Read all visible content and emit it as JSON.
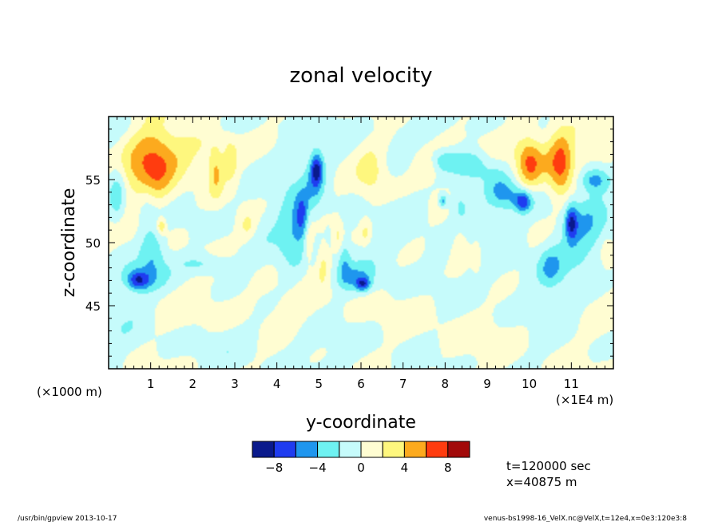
{
  "chart_data": {
    "type": "heatmap",
    "title": "zonal velocity",
    "xlabel": "y-coordinate",
    "ylabel": "z-coordinate",
    "x_unit_note": "(×1E4 m)",
    "y_unit_note": "(×1000 m)",
    "xlim": [
      0,
      12
    ],
    "ylim": [
      40,
      60
    ],
    "x_ticks": [
      "1",
      "2",
      "3",
      "4",
      "5",
      "6",
      "7",
      "8",
      "9",
      "10",
      "11"
    ],
    "y_ticks": [
      "45",
      "50",
      "55"
    ],
    "grid": false,
    "colorbar": {
      "levels": [
        -10,
        -8,
        -6,
        -4,
        -2,
        0,
        2,
        4,
        6,
        8,
        10
      ],
      "colors": [
        "#0a1a8c",
        "#1f3cf0",
        "#1f96ee",
        "#6ef2f2",
        "#c6fbfb",
        "#fffdd2",
        "#fef77e",
        "#fcaa1e",
        "#ff3c0f",
        "#a20a0a"
      ],
      "tick_labels": [
        "-8",
        "-4",
        "0",
        "4",
        "8"
      ],
      "tick_values": [
        -8,
        -4,
        0,
        4,
        8
      ]
    },
    "features": [
      {
        "y": 1.03,
        "z": 56.3,
        "value": 5.0,
        "ry": 0.55,
        "rz": 3.2
      },
      {
        "y": 0.75,
        "z": 55.9,
        "value": 1.5,
        "ry": 0.75,
        "rz": 2.6
      },
      {
        "y": 2.1,
        "z": 57.0,
        "value": 2.6,
        "ry": 0.9,
        "rz": 2.2
      },
      {
        "y": 2.55,
        "z": 55.5,
        "value": 3.8,
        "ry": 0.18,
        "rz": 2.0
      },
      {
        "y": 2.9,
        "z": 56.5,
        "value": 3.2,
        "ry": 0.16,
        "rz": 1.6
      },
      {
        "y": 1.25,
        "z": 51.3,
        "value": 4.2,
        "ry": 0.1,
        "rz": 0.6
      },
      {
        "y": 3.3,
        "z": 51.3,
        "value": 2.6,
        "ry": 0.22,
        "rz": 1.2
      },
      {
        "y": 6.25,
        "z": 55.5,
        "value": 2.6,
        "ry": 0.35,
        "rz": 2.3
      },
      {
        "y": 7.55,
        "z": 56.1,
        "value": 2.6,
        "ry": 0.32,
        "rz": 1.2
      },
      {
        "y": 10.0,
        "z": 56.3,
        "value": 5.0,
        "ry": 0.3,
        "rz": 2.1
      },
      {
        "y": 10.75,
        "z": 56.0,
        "value": 5.0,
        "ry": 0.28,
        "rz": 2.8
      },
      {
        "y": 10.4,
        "z": 57.0,
        "value": 2.0,
        "ry": 1.3,
        "rz": 2.2
      },
      {
        "y": 5.1,
        "z": 48.3,
        "value": 2.8,
        "ry": 0.16,
        "rz": 1.6
      },
      {
        "y": 4.75,
        "z": 50.0,
        "value": 2.6,
        "ry": 0.12,
        "rz": 1.8
      },
      {
        "y": 5.45,
        "z": 50.5,
        "value": 2.6,
        "ry": 0.12,
        "rz": 1.4
      },
      {
        "y": 6.1,
        "z": 50.8,
        "value": 2.4,
        "ry": 0.12,
        "rz": 1.0
      },
      {
        "y": 8.35,
        "z": 49.6,
        "value": 2.6,
        "ry": 0.22,
        "rz": 1.8
      },
      {
        "y": 8.75,
        "z": 48.8,
        "value": 2.6,
        "ry": 0.13,
        "rz": 1.3
      },
      {
        "y": 11.85,
        "z": 49.0,
        "value": 2.6,
        "ry": 0.15,
        "rz": 1.2
      },
      {
        "y": 3.5,
        "z": 45.0,
        "value": 0.8,
        "ry": 2.4,
        "rz": 1.8
      },
      {
        "y": 8.4,
        "z": 43.0,
        "value": 0.8,
        "ry": 2.4,
        "rz": 2.6
      },
      {
        "y": 0.9,
        "z": 53.0,
        "value": -2.5,
        "ry": 0.25,
        "rz": 2.2
      },
      {
        "y": 1.05,
        "z": 49.2,
        "value": -3.4,
        "ry": 0.28,
        "rz": 1.6
      },
      {
        "y": 0.7,
        "z": 47.0,
        "value": -5.5,
        "ry": 0.26,
        "rz": 0.75
      },
      {
        "y": 0.85,
        "z": 47.2,
        "value": -3.0,
        "ry": 0.5,
        "rz": 1.2
      },
      {
        "y": 2.3,
        "z": 48.3,
        "value": -2.8,
        "ry": 0.6,
        "rz": 0.8
      },
      {
        "y": 4.6,
        "z": 52.0,
        "value": -5.6,
        "ry": 0.16,
        "rz": 1.8
      },
      {
        "y": 4.35,
        "z": 50.5,
        "value": -3.0,
        "ry": 0.3,
        "rz": 3.0
      },
      {
        "y": 4.95,
        "z": 55.8,
        "value": -6.0,
        "ry": 0.14,
        "rz": 1.2
      },
      {
        "y": 4.9,
        "z": 55.0,
        "value": -3.0,
        "ry": 0.22,
        "rz": 2.4
      },
      {
        "y": 6.05,
        "z": 46.7,
        "value": -6.0,
        "ry": 0.16,
        "rz": 0.55
      },
      {
        "y": 5.8,
        "z": 47.2,
        "value": -3.0,
        "ry": 0.45,
        "rz": 1.0
      },
      {
        "y": 5.6,
        "z": 48.6,
        "value": -3.0,
        "ry": 0.15,
        "rz": 1.5
      },
      {
        "y": 7.95,
        "z": 53.3,
        "value": -5.0,
        "ry": 0.1,
        "rz": 0.5
      },
      {
        "y": 8.35,
        "z": 53.0,
        "value": -3.0,
        "ry": 0.25,
        "rz": 1.5
      },
      {
        "y": 8.65,
        "z": 56.2,
        "value": -4.2,
        "ry": 0.45,
        "rz": 1.3
      },
      {
        "y": 7.95,
        "z": 56.5,
        "value": -3.2,
        "ry": 0.32,
        "rz": 0.8
      },
      {
        "y": 9.85,
        "z": 53.2,
        "value": -5.6,
        "ry": 0.18,
        "rz": 0.8
      },
      {
        "y": 9.7,
        "z": 53.6,
        "value": -3.0,
        "ry": 0.5,
        "rz": 1.1
      },
      {
        "y": 11.0,
        "z": 51.6,
        "value": -6.2,
        "ry": 0.14,
        "rz": 1.4
      },
      {
        "y": 11.25,
        "z": 51.0,
        "value": -3.4,
        "ry": 0.6,
        "rz": 3.0
      },
      {
        "y": 11.55,
        "z": 55.0,
        "value": -5.5,
        "ry": 0.35,
        "rz": 1.0
      },
      {
        "y": 10.5,
        "z": 48.0,
        "value": -3.2,
        "ry": 0.28,
        "rz": 1.6
      },
      {
        "y": 9.3,
        "z": 54.5,
        "value": -2.4,
        "ry": 0.35,
        "rz": 2.0
      },
      {
        "y": 0.2,
        "z": 54.0,
        "value": -3.4,
        "ry": 0.2,
        "rz": 2.4
      },
      {
        "y": 7.3,
        "z": 49.0,
        "value": -0.8,
        "ry": 2.6,
        "rz": 3.5
      },
      {
        "y": 4.0,
        "z": 54.0,
        "value": -0.8,
        "ry": 1.8,
        "rz": 5.0
      },
      {
        "y": 3.0,
        "z": 42.0,
        "value": -0.8,
        "ry": 1.5,
        "rz": 1.6
      },
      {
        "y": 6.2,
        "z": 41.5,
        "value": -0.8,
        "ry": 1.5,
        "rz": 1.8
      },
      {
        "y": 10.0,
        "z": 46.0,
        "value": -0.8,
        "ry": 1.4,
        "rz": 4.5
      },
      {
        "y": 0.3,
        "z": 44.0,
        "value": -0.8,
        "ry": 0.7,
        "rz": 5.0
      },
      {
        "y": 7.0,
        "z": 59.0,
        "value": -0.8,
        "ry": 1.8,
        "rz": 1.0
      },
      {
        "y": 1.8,
        "z": 59.2,
        "value": -0.8,
        "ry": 1.8,
        "rz": 0.8
      }
    ]
  },
  "info": {
    "time_label": "t=120000 sec",
    "x_label": "x=40875 m"
  },
  "footer": {
    "left": "/usr/bin/gpview  2013-10-17",
    "right": "venus-bs1998-16_VelX.nc@VelX,t=12e4,x=0e3:120e3:8"
  }
}
